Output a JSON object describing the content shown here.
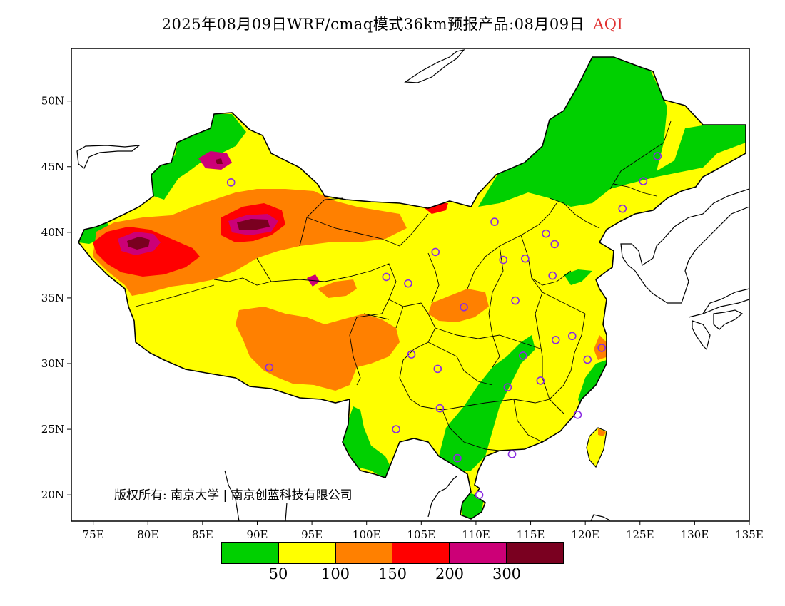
{
  "title": {
    "main": "2025年08月09日WRF/cmaq模式36km预报产品:08月09日",
    "variable": "AQI",
    "variable_color": "#e03030"
  },
  "map": {
    "lon_range": [
      73,
      135
    ],
    "lat_range": [
      18,
      54
    ],
    "lon_ticks": [
      "75E",
      "80E",
      "85E",
      "90E",
      "95E",
      "100E",
      "105E",
      "110E",
      "115E",
      "120E",
      "125E",
      "130E",
      "135E"
    ],
    "lat_ticks": [
      "20N",
      "25N",
      "30N",
      "35N",
      "40N",
      "45N",
      "50N"
    ],
    "copyright": "版权所有: 南京大学 | 南京创蓝科技有限公司"
  },
  "colorbar": {
    "colors": [
      "#00d000",
      "#ffff00",
      "#ff8000",
      "#ff0000",
      "#cc0077",
      "#7a0020"
    ],
    "labels": [
      "50",
      "100",
      "150",
      "200",
      "300"
    ]
  },
  "colors": {
    "good": "#00d000",
    "moderate": "#ffff00",
    "light": "#ff8000",
    "medium": "#ff0000",
    "heavy": "#cc0077",
    "severe": "#7a0020",
    "marker": "#8a2be2"
  }
}
